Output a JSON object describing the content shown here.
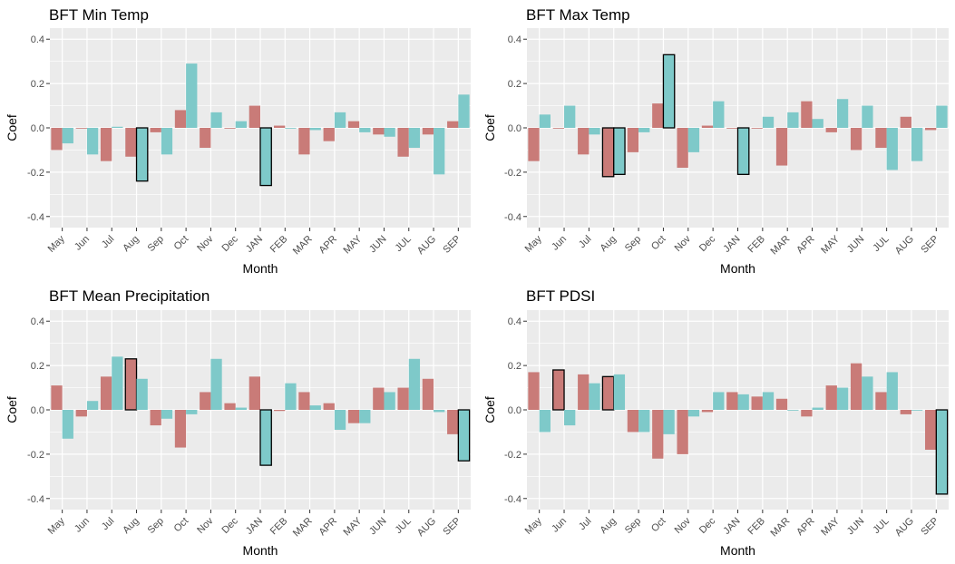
{
  "colors": {
    "series1": "#c97b78",
    "series2": "#7ec9c9",
    "panel_bg": "#ebebeb",
    "grid": "#ffffff",
    "highlight_border": "#000000"
  },
  "chart_data": [
    {
      "type": "bar",
      "title": "BFT Min Temp",
      "xlabel": "Month",
      "ylabel": "Coef",
      "ylim": [
        -0.45,
        0.45
      ],
      "yticks": [
        -0.4,
        -0.2,
        0.0,
        0.2,
        0.4
      ],
      "ytick_labels": [
        "-0.4",
        "-0.2",
        "0.0",
        "0.2",
        "0.4"
      ],
      "categories": [
        "May",
        "Jun",
        "Jul",
        "Aug",
        "Sep",
        "Oct",
        "Nov",
        "Dec",
        "JAN",
        "FEB",
        "MAR",
        "APR",
        "MAY",
        "JUN",
        "JUL",
        "AUG",
        "SEP"
      ],
      "series": [
        {
          "name": "series1",
          "values": [
            -0.1,
            0.0,
            -0.15,
            -0.13,
            -0.02,
            0.08,
            -0.09,
            0.0,
            0.1,
            0.01,
            -0.12,
            -0.06,
            0.03,
            -0.03,
            -0.13,
            -0.03,
            0.03
          ],
          "highlighted": [
            false,
            false,
            false,
            false,
            false,
            false,
            false,
            false,
            false,
            false,
            false,
            false,
            false,
            false,
            false,
            false,
            false
          ]
        },
        {
          "name": "series2",
          "values": [
            -0.07,
            -0.12,
            0.005,
            -0.24,
            -0.12,
            0.29,
            0.07,
            0.03,
            -0.26,
            0.0,
            -0.01,
            0.07,
            -0.02,
            -0.04,
            -0.09,
            -0.21,
            0.15
          ],
          "highlighted": [
            false,
            false,
            false,
            true,
            false,
            false,
            false,
            false,
            true,
            false,
            false,
            false,
            false,
            false,
            false,
            false,
            false
          ]
        }
      ]
    },
    {
      "type": "bar",
      "title": "BFT Max Temp",
      "xlabel": "Month",
      "ylabel": "Coef",
      "ylim": [
        -0.45,
        0.45
      ],
      "yticks": [
        -0.4,
        -0.2,
        0.0,
        0.2,
        0.4
      ],
      "ytick_labels": [
        "-0.4",
        "-0.2",
        "0.0",
        "0.2",
        "0.4"
      ],
      "categories": [
        "May",
        "Jun",
        "Jul",
        "Aug",
        "Sep",
        "Oct",
        "Nov",
        "Dec",
        "JAN",
        "FEB",
        "MAR",
        "APR",
        "MAY",
        "JUN",
        "JUL",
        "AUG",
        "SEP"
      ],
      "series": [
        {
          "name": "series1",
          "values": [
            -0.15,
            0.0,
            -0.12,
            -0.22,
            -0.11,
            0.11,
            -0.18,
            0.01,
            0.0,
            0.0,
            -0.17,
            0.12,
            -0.02,
            -0.1,
            -0.09,
            0.05,
            -0.01
          ],
          "highlighted": [
            false,
            false,
            false,
            true,
            false,
            false,
            false,
            false,
            false,
            false,
            false,
            false,
            false,
            false,
            false,
            false,
            false
          ]
        },
        {
          "name": "series2",
          "values": [
            0.06,
            0.1,
            -0.03,
            -0.21,
            -0.02,
            0.33,
            -0.11,
            0.12,
            -0.21,
            0.05,
            0.07,
            0.04,
            0.13,
            0.1,
            -0.19,
            -0.15,
            0.1
          ],
          "highlighted": [
            false,
            false,
            false,
            true,
            false,
            true,
            false,
            false,
            true,
            false,
            false,
            false,
            false,
            false,
            false,
            false,
            false
          ]
        }
      ]
    },
    {
      "type": "bar",
      "title": "BFT Mean Precipitation",
      "xlabel": "Month",
      "ylabel": "Coef",
      "ylim": [
        -0.45,
        0.45
      ],
      "yticks": [
        -0.4,
        -0.2,
        0.0,
        0.2,
        0.4
      ],
      "ytick_labels": [
        "-0.4",
        "-0.2",
        "0.0",
        "0.2",
        "0.4"
      ],
      "categories": [
        "May",
        "Jun",
        "Jul",
        "Aug",
        "Sep",
        "Oct",
        "Nov",
        "Dec",
        "JAN",
        "FEB",
        "MAR",
        "APR",
        "MAY",
        "JUN",
        "JUL",
        "AUG",
        "SEP"
      ],
      "series": [
        {
          "name": "series1",
          "values": [
            0.11,
            -0.03,
            0.15,
            0.23,
            -0.07,
            -0.17,
            0.08,
            0.03,
            0.15,
            -0.005,
            0.08,
            0.03,
            -0.06,
            0.1,
            0.1,
            0.14,
            -0.11
          ],
          "highlighted": [
            false,
            false,
            false,
            true,
            false,
            false,
            false,
            false,
            false,
            false,
            false,
            false,
            false,
            false,
            false,
            false,
            false
          ]
        },
        {
          "name": "series2",
          "values": [
            -0.13,
            0.04,
            0.24,
            0.14,
            -0.04,
            -0.02,
            0.23,
            0.01,
            -0.25,
            0.12,
            0.02,
            -0.09,
            -0.06,
            0.08,
            0.23,
            -0.01,
            -0.23
          ],
          "highlighted": [
            false,
            false,
            false,
            false,
            false,
            false,
            false,
            false,
            true,
            false,
            false,
            false,
            false,
            false,
            false,
            false,
            true
          ]
        }
      ]
    },
    {
      "type": "bar",
      "title": "BFT PDSI",
      "xlabel": "Month",
      "ylabel": "Coef",
      "ylim": [
        -0.45,
        0.45
      ],
      "yticks": [
        -0.4,
        -0.2,
        0.0,
        0.2,
        0.4
      ],
      "ytick_labels": [
        "-0.4",
        "-0.2",
        "0.0",
        "0.2",
        "0.4"
      ],
      "categories": [
        "May",
        "Jun",
        "Jul",
        "Aug",
        "Sep",
        "Oct",
        "Nov",
        "Dec",
        "JAN",
        "FEB",
        "MAR",
        "APR",
        "MAY",
        "JUN",
        "JUL",
        "AUG",
        "SEP"
      ],
      "series": [
        {
          "name": "series1",
          "values": [
            0.17,
            0.18,
            0.16,
            0.15,
            -0.1,
            -0.22,
            -0.2,
            -0.01,
            0.08,
            0.06,
            0.05,
            -0.03,
            0.11,
            0.21,
            0.08,
            -0.02,
            -0.18
          ],
          "highlighted": [
            false,
            true,
            false,
            true,
            false,
            false,
            false,
            false,
            false,
            false,
            false,
            false,
            false,
            false,
            false,
            false,
            false
          ]
        },
        {
          "name": "series2",
          "values": [
            -0.1,
            -0.07,
            0.12,
            0.16,
            -0.1,
            -0.11,
            -0.03,
            0.08,
            0.07,
            0.08,
            0.0,
            0.01,
            0.1,
            0.15,
            0.17,
            0.0,
            -0.38
          ],
          "highlighted": [
            false,
            false,
            false,
            false,
            false,
            false,
            false,
            false,
            false,
            false,
            false,
            false,
            false,
            false,
            false,
            false,
            true
          ]
        }
      ]
    }
  ]
}
